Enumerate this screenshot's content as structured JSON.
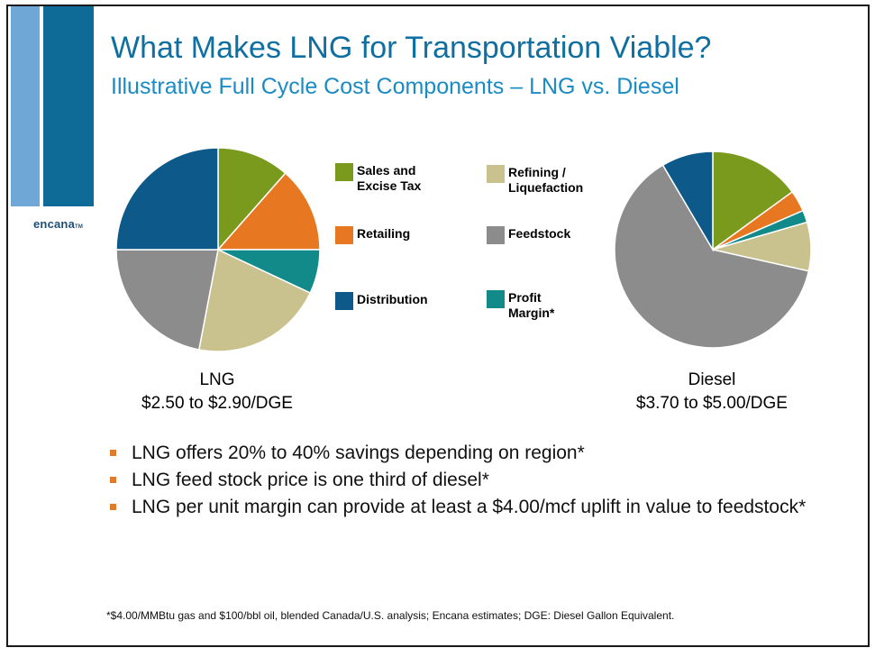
{
  "slide": {
    "logo": "encana",
    "logo_mark": "TM",
    "title": "What Makes LNG for Transportation Viable?",
    "subtitle": "Illustrative Full Cycle Cost Components –  LNG vs. Diesel",
    "bullets": [
      "LNG offers 20% to 40% savings depending on region*",
      "LNG feed stock price is one third of diesel*",
      "LNG per unit margin can provide at least a $4.00/mcf uplift  in value to feedstock*"
    ],
    "footnote": "*$4.00/MMBtu gas and $100/bbl oil, blended Canada/U.S. analysis; Encana estimates; DGE: Diesel Gallon Equivalent.",
    "accent_color": "#0e6fa0",
    "bullet_color": "#e07b2a"
  },
  "chart_data": {
    "type": "pie",
    "legend": [
      {
        "name": "Sales and\nExcise Tax",
        "color": "#7a9a1e"
      },
      {
        "name": "Retailing",
        "color": "#e87722"
      },
      {
        "name": "Distribution",
        "color": "#0d5a8a"
      },
      {
        "name": "Refining /\nLiquefaction",
        "color": "#c9c28e"
      },
      {
        "name": "Feedstock",
        "color": "#8c8c8c"
      },
      {
        "name": "Profit\nMargin*",
        "color": "#138a8a"
      }
    ],
    "charts": [
      {
        "label": "LNG",
        "range": "$2.50 to $2.90/DGE",
        "slices": [
          {
            "name": "Sales and Excise Tax",
            "value": 11.5,
            "color": "#7a9a1e"
          },
          {
            "name": "Retailing",
            "value": 13.5,
            "color": "#e87722"
          },
          {
            "name": "Profit Margin",
            "value": 7.0,
            "color": "#138a8a"
          },
          {
            "name": "Refining / Liquefaction",
            "value": 21.0,
            "color": "#c9c28e"
          },
          {
            "name": "Feedstock",
            "value": 22.0,
            "color": "#8c8c8c"
          },
          {
            "name": "Distribution",
            "value": 25.0,
            "color": "#0d5a8a"
          }
        ]
      },
      {
        "label": "Diesel",
        "range": "$3.70 to $5.00/DGE",
        "slices": [
          {
            "name": "Sales and Excise Tax",
            "value": 15.0,
            "color": "#7a9a1e"
          },
          {
            "name": "Retailing",
            "value": 3.5,
            "color": "#e87722"
          },
          {
            "name": "Profit Margin",
            "value": 2.0,
            "color": "#138a8a"
          },
          {
            "name": "Refining / Liquefaction",
            "value": 8.0,
            "color": "#c9c28e"
          },
          {
            "name": "Feedstock",
            "value": 63.0,
            "color": "#8c8c8c"
          },
          {
            "name": "Distribution",
            "value": 8.5,
            "color": "#0d5a8a"
          }
        ]
      }
    ]
  }
}
